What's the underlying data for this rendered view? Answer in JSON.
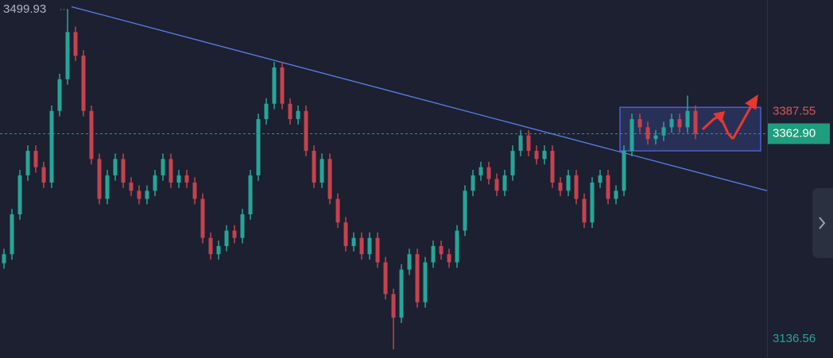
{
  "chart_data": {
    "type": "candlestick",
    "up_color": "#26a69a",
    "down_color": "#c5424f",
    "xlim": [
      -0.5,
      96
    ],
    "ylim": [
      3115.5,
      3510.4
    ],
    "open": [
      3220,
      3230,
      3274,
      3317,
      3344,
      3326,
      3309,
      3388,
      3423,
      3475,
      3449,
      3388,
      3335,
      3291,
      3317,
      3335,
      3309,
      3300,
      3291,
      3300,
      3317,
      3335,
      3309,
      3317,
      3309,
      3291,
      3248,
      3230,
      3239,
      3256,
      3248,
      3274,
      3317,
      3379,
      3396,
      3436,
      3396,
      3379,
      3388,
      3344,
      3309,
      3335,
      3291,
      3265,
      3239,
      3248,
      3230,
      3248,
      3221,
      3186,
      3160,
      3213,
      3230,
      3177,
      3221,
      3239,
      3230,
      3221,
      3256,
      3300,
      3317,
      3326,
      3313,
      3300,
      3317,
      3344,
      3361,
      3344,
      3335,
      3344,
      3309,
      3300,
      3317,
      3291,
      3265,
      3309,
      3317,
      3291,
      3300,
      3344,
      3379,
      3370,
      3357,
      3361,
      3370,
      3379,
      3370,
      3388
    ],
    "high": [
      3236,
      3280,
      3323,
      3350,
      3350,
      3332,
      3394,
      3429,
      3499.93,
      3481,
      3455,
      3394,
      3341,
      3323,
      3341,
      3341,
      3315,
      3306,
      3306,
      3323,
      3341,
      3341,
      3323,
      3323,
      3315,
      3297,
      3254,
      3245,
      3262,
      3262,
      3280,
      3323,
      3385,
      3402,
      3442,
      3442,
      3402,
      3394,
      3394,
      3350,
      3341,
      3341,
      3297,
      3271,
      3254,
      3254,
      3254,
      3254,
      3227,
      3192,
      3219,
      3236,
      3236,
      3227,
      3245,
      3245,
      3236,
      3262,
      3306,
      3323,
      3332,
      3332,
      3319,
      3323,
      3350,
      3367,
      3367,
      3350,
      3350,
      3350,
      3315,
      3323,
      3323,
      3297,
      3315,
      3323,
      3323,
      3306,
      3350,
      3385,
      3385,
      3376,
      3367,
      3376,
      3385,
      3385,
      3405,
      3394
    ],
    "low": [
      3214,
      3224,
      3268,
      3311,
      3320,
      3303,
      3303,
      3382,
      3417,
      3443,
      3382,
      3329,
      3285,
      3285,
      3311,
      3303,
      3294,
      3285,
      3285,
      3294,
      3311,
      3303,
      3303,
      3303,
      3285,
      3242,
      3224,
      3224,
      3233,
      3242,
      3242,
      3268,
      3311,
      3373,
      3390,
      3390,
      3373,
      3373,
      3338,
      3303,
      3303,
      3285,
      3259,
      3233,
      3233,
      3224,
      3224,
      3215,
      3180,
      3125,
      3154,
      3207,
      3171,
      3171,
      3215,
      3224,
      3215,
      3215,
      3250,
      3294,
      3311,
      3307,
      3294,
      3294,
      3311,
      3338,
      3338,
      3329,
      3329,
      3303,
      3294,
      3294,
      3285,
      3259,
      3259,
      3303,
      3285,
      3285,
      3294,
      3338,
      3364,
      3351,
      3351,
      3355,
      3364,
      3364,
      3364,
      3357
    ],
    "close": [
      3230,
      3274,
      3317,
      3344,
      3326,
      3309,
      3388,
      3423,
      3475,
      3449,
      3388,
      3335,
      3291,
      3317,
      3335,
      3309,
      3300,
      3291,
      3300,
      3317,
      3335,
      3309,
      3317,
      3309,
      3291,
      3248,
      3230,
      3239,
      3256,
      3248,
      3274,
      3317,
      3379,
      3396,
      3436,
      3396,
      3379,
      3388,
      3344,
      3309,
      3335,
      3291,
      3265,
      3239,
      3248,
      3230,
      3248,
      3221,
      3186,
      3160,
      3213,
      3230,
      3177,
      3221,
      3239,
      3230,
      3221,
      3256,
      3300,
      3317,
      3326,
      3313,
      3300,
      3317,
      3344,
      3361,
      3344,
      3335,
      3344,
      3309,
      3300,
      3317,
      3291,
      3265,
      3309,
      3317,
      3291,
      3300,
      3344,
      3379,
      3370,
      3357,
      3361,
      3370,
      3379,
      3370,
      3388,
      3363
    ],
    "yticks": [
      3387.55,
      {
        "value": 3362.9,
        "label": "3362.90"
      },
      3136.56
    ],
    "trendline": {
      "color": "#5b7fe8",
      "x": [
        8.5,
        96
      ],
      "y": [
        3503,
        3300
      ]
    },
    "range_box": {
      "color": "#4a5fd0",
      "x": [
        77.5,
        95.2
      ],
      "y": [
        3344,
        3392
      ]
    }
  }
}
